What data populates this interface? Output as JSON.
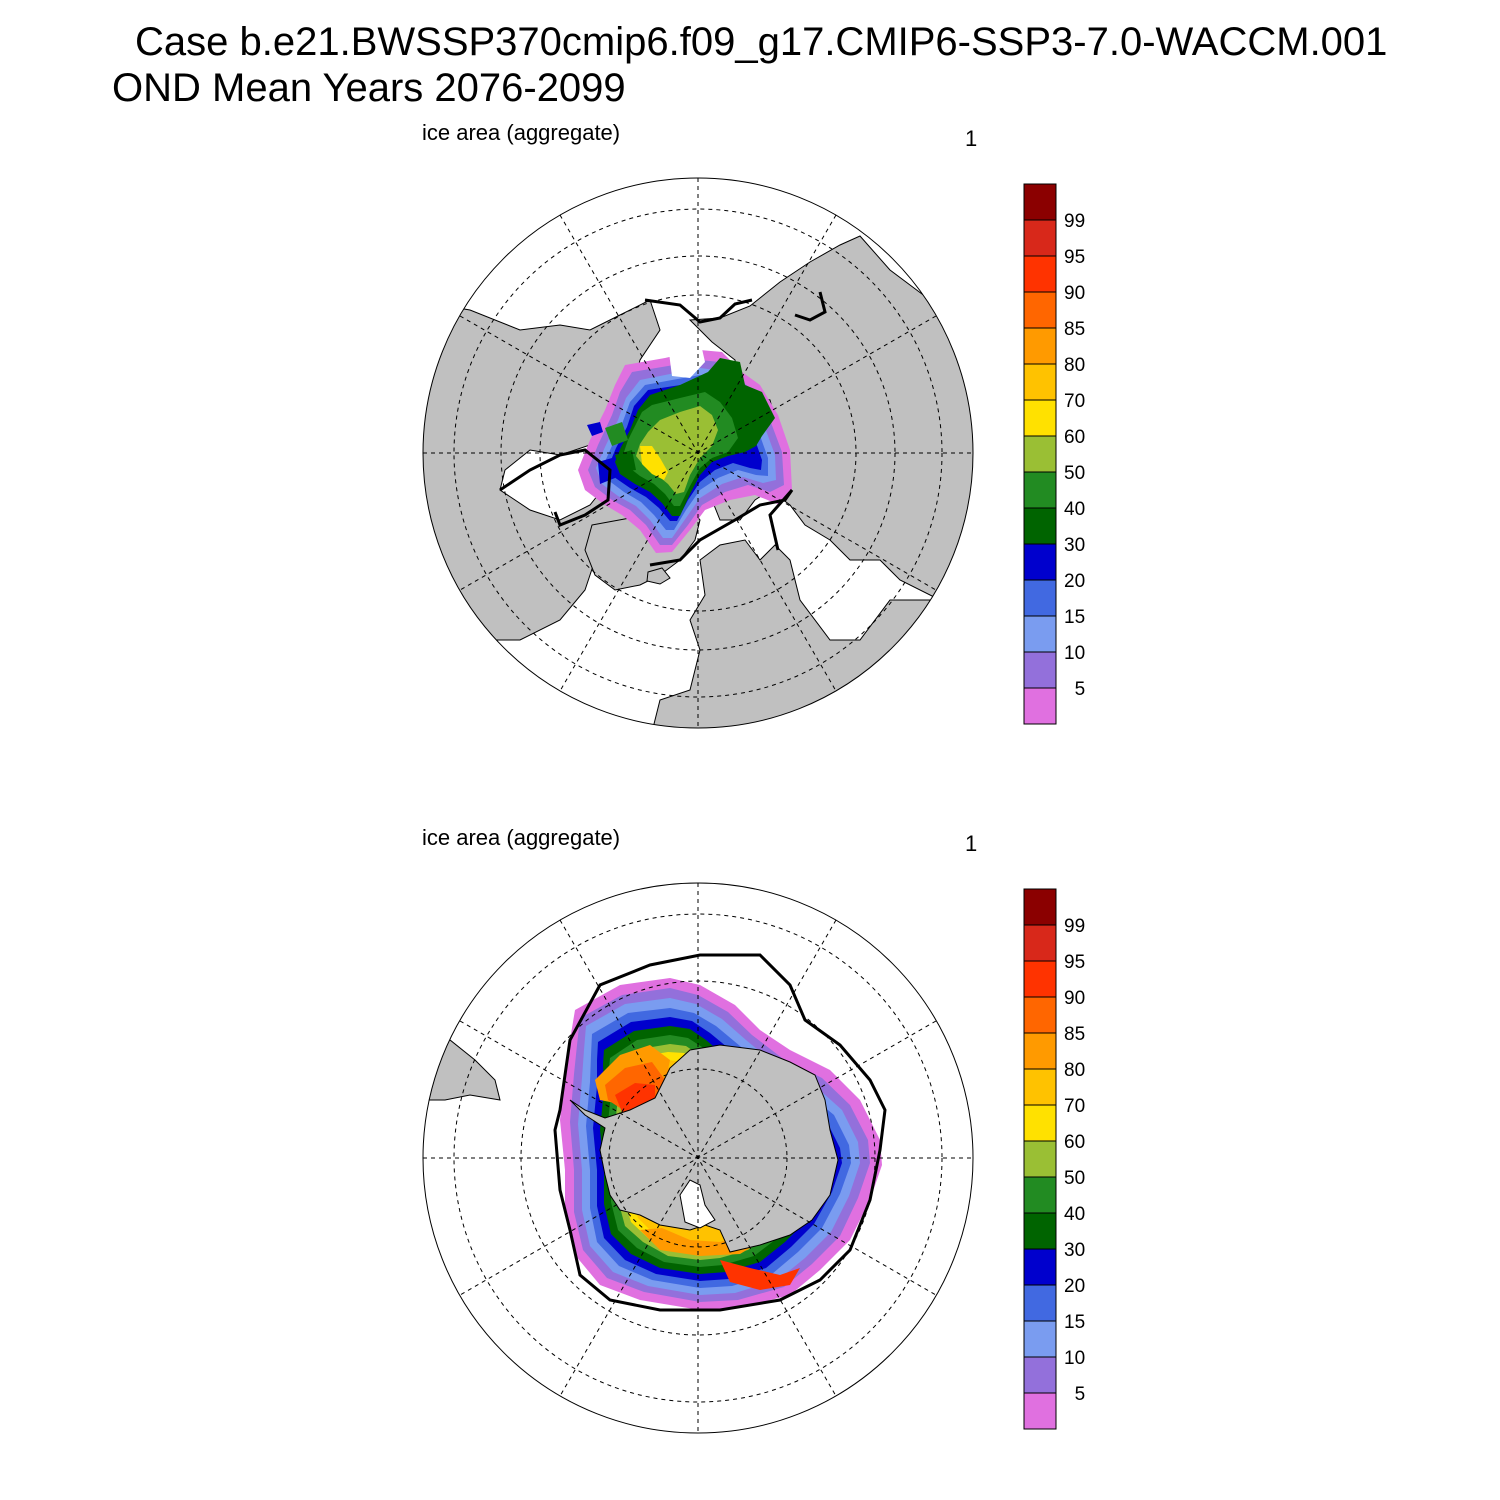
{
  "title": {
    "line1": "Case b.e21.BWSSP370cmip6.f09_g17.CMIP6-SSP3-7.0-WACCM.001",
    "line2": "OND Mean   Years 2076-2099"
  },
  "panels": [
    {
      "id": "north",
      "label": "ice area  (aggregate)",
      "number": "1"
    },
    {
      "id": "south",
      "label": "ice area  (aggregate)",
      "number": "1"
    }
  ],
  "colorbar": {
    "labels": [
      "99",
      "95",
      "90",
      "85",
      "80",
      "70",
      "60",
      "50",
      "40",
      "30",
      "20",
      "15",
      "10",
      "5"
    ],
    "colors": [
      "#8b0000",
      "#d8281a",
      "#ff3300",
      "#ff6600",
      "#ff9a00",
      "#ffc200",
      "#ffe100",
      "#9abf34",
      "#228b22",
      "#006400",
      "#0000cd",
      "#4169e1",
      "#7a9cf0",
      "#9370db",
      "#e070e0"
    ]
  },
  "map_colors": {
    "land": "#c0c0c0",
    "ocean": "#ffffff",
    "ice_edge_line": "#000000"
  }
}
